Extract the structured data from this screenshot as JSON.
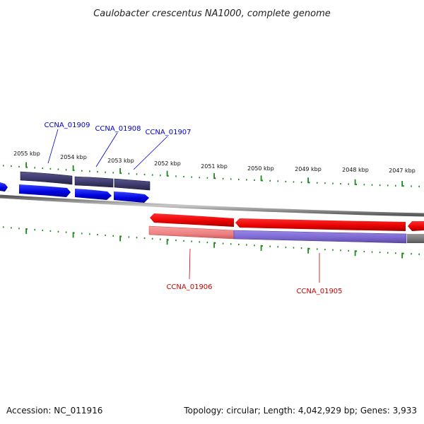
{
  "title": "Caulobacter crescentus NA1000, complete genome",
  "ticks": [
    "2055 kbp",
    "2054 kbp",
    "2053 kbp",
    "2052 kbp",
    "2051 kbp",
    "2050 kbp",
    "2049 kbp",
    "2048 kbp",
    "2047 kbp"
  ],
  "genes_forward": [
    "CCNA_01909",
    "CCNA_01908",
    "CCNA_01907"
  ],
  "genes_reverse": [
    "CCNA_01906",
    "CCNA_01905"
  ],
  "footer": {
    "accession": "Accession: NC_011916",
    "summary": "Topology: circular; Length: 4,042,929 bp; Genes: 3,933"
  },
  "colors": {
    "forward_cds": "#0000ee",
    "forward_gene": "#3d3a6e",
    "reverse_cds": "#ee0000",
    "reverse_gene_light": "#ee8080",
    "reverse_gene_mixed": "#7a66cc",
    "backbone": "#8a8a8a",
    "tick": "#1e8a1e"
  }
}
